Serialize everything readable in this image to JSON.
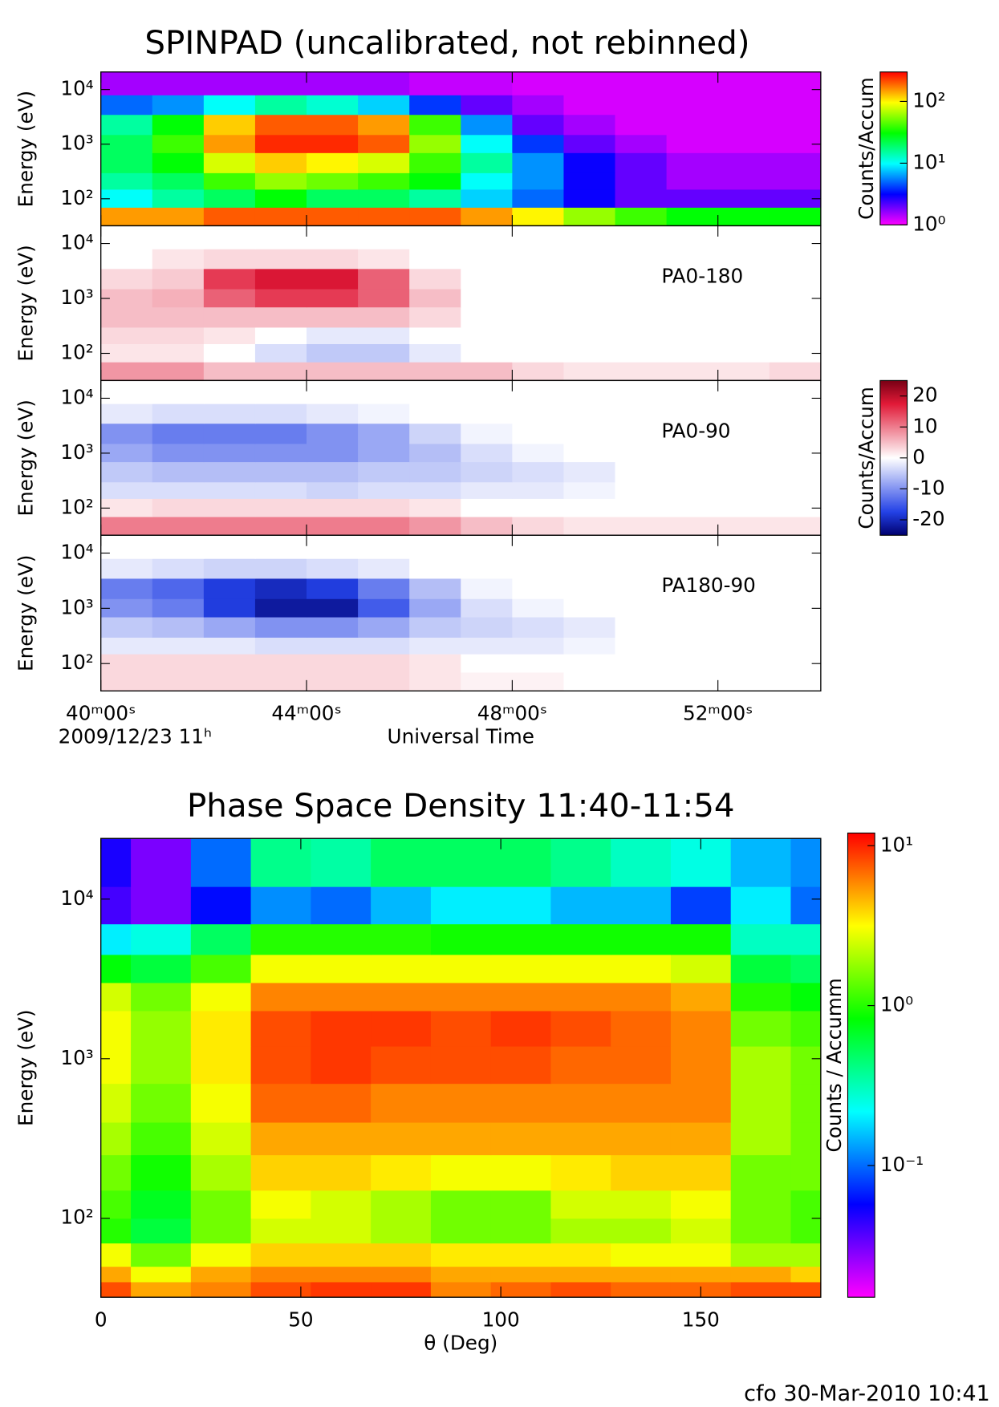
{
  "chart_data": [
    {
      "type": "heatmap",
      "title": "SPINPAD (uncalibrated, not rebinned)",
      "ylabel": "Energy (eV)",
      "log_y": true,
      "ylim": [
        32,
        21000
      ],
      "yticks": [
        {
          "value": 100,
          "label": "10²"
        },
        {
          "value": 1000,
          "label": "10³"
        },
        {
          "value": 10000,
          "label": "10⁴"
        }
      ],
      "xlim": [
        40,
        54
      ],
      "xticks": [
        40,
        44,
        48,
        52
      ],
      "xbins": [
        40,
        41,
        42,
        43,
        44,
        45,
        46,
        47,
        48,
        49,
        50,
        51,
        52,
        53,
        54
      ],
      "ybins": [
        32,
        70,
        150,
        300,
        700,
        1500,
        3500,
        8000,
        21000
      ],
      "values": [
        [
          150,
          150,
          200,
          200,
          200,
          200,
          200,
          150,
          100,
          60,
          40,
          30,
          30,
          30
        ],
        [
          10,
          15,
          20,
          30,
          20,
          20,
          15,
          8,
          5,
          3,
          2,
          2,
          2,
          2
        ],
        [
          15,
          20,
          40,
          60,
          50,
          40,
          30,
          10,
          6,
          3,
          2,
          1.5,
          1.5,
          1.5
        ],
        [
          20,
          30,
          80,
          120,
          100,
          80,
          40,
          15,
          6,
          3,
          2,
          1.5,
          1.5,
          1.5
        ],
        [
          20,
          40,
          150,
          250,
          250,
          200,
          60,
          10,
          4,
          2,
          1.5,
          1.2,
          1.2,
          1.2
        ],
        [
          15,
          30,
          120,
          200,
          200,
          150,
          40,
          6,
          2,
          1.5,
          1.2,
          1.2,
          1.2,
          1.2
        ],
        [
          5,
          6,
          10,
          15,
          12,
          8,
          4,
          2,
          1.5,
          1.2,
          1.2,
          1.2,
          1.2,
          1.2
        ],
        [
          1.5,
          1.5,
          1.5,
          1.5,
          1.5,
          1.5,
          1.3,
          1.3,
          1.2,
          1.2,
          1.2,
          1.2,
          1.2,
          1.2
        ]
      ],
      "colormap": "rainbow",
      "color_scale": "log",
      "clim": [
        1,
        300
      ],
      "colorbar": {
        "label": "Counts/Accum",
        "ticks": [
          {
            "value": 1,
            "label": "10⁰"
          },
          {
            "value": 10,
            "label": "10¹"
          },
          {
            "value": 100,
            "label": "10²"
          }
        ]
      }
    },
    {
      "type": "heatmap",
      "annotation": "PA0-180",
      "ylabel": "Energy (eV)",
      "log_y": true,
      "ylim": [
        32,
        21000
      ],
      "yticks": [
        {
          "value": 100,
          "label": "10²"
        },
        {
          "value": 1000,
          "label": "10³"
        },
        {
          "value": 10000,
          "label": "10⁴"
        }
      ],
      "xlim": [
        40,
        54
      ],
      "xticks": [
        40,
        44,
        48,
        52
      ],
      "xbins": [
        40,
        41,
        42,
        43,
        44,
        45,
        46,
        47,
        48,
        49,
        50,
        51,
        52,
        53,
        54
      ],
      "ybins": [
        32,
        70,
        150,
        300,
        700,
        1500,
        3500,
        8000,
        21000
      ],
      "values": [
        [
          8,
          8,
          5,
          5,
          5,
          5,
          5,
          5,
          3,
          2,
          2,
          2,
          2,
          3
        ],
        [
          2,
          2,
          0,
          -3,
          -5,
          -5,
          -2,
          0,
          0,
          0,
          0,
          0,
          0,
          0
        ],
        [
          3,
          3,
          2,
          0,
          -2,
          -2,
          0,
          0,
          0,
          0,
          0,
          0,
          0,
          0
        ],
        [
          5,
          5,
          5,
          5,
          5,
          5,
          3,
          0,
          0,
          0,
          0,
          0,
          0,
          0
        ],
        [
          5,
          6,
          12,
          15,
          15,
          12,
          5,
          0,
          0,
          0,
          0,
          0,
          0,
          0
        ],
        [
          3,
          4,
          15,
          18,
          18,
          12,
          3,
          0,
          0,
          0,
          0,
          0,
          0,
          0
        ],
        [
          0,
          2,
          3,
          3,
          3,
          2,
          0,
          0,
          0,
          0,
          0,
          0,
          0,
          0
        ],
        [
          0,
          0,
          0,
          0,
          0,
          0,
          0,
          0,
          0,
          0,
          0,
          0,
          0,
          0
        ]
      ],
      "colormap": "diverging",
      "color_scale": "linear",
      "clim": [
        -25,
        25
      ]
    },
    {
      "type": "heatmap",
      "annotation": "PA0-90",
      "ylabel": "Energy (eV)",
      "log_y": true,
      "ylim": [
        32,
        21000
      ],
      "yticks": [
        {
          "value": 100,
          "label": "10²"
        },
        {
          "value": 1000,
          "label": "10³"
        },
        {
          "value": 10000,
          "label": "10⁴"
        }
      ],
      "xlim": [
        40,
        54
      ],
      "xticks": [
        40,
        44,
        48,
        52
      ],
      "xbins": [
        40,
        41,
        42,
        43,
        44,
        45,
        46,
        47,
        48,
        49,
        50,
        51,
        52,
        53,
        54
      ],
      "ybins": [
        32,
        70,
        150,
        300,
        700,
        1500,
        3500,
        8000,
        21000
      ],
      "values": [
        [
          10,
          10,
          10,
          10,
          10,
          10,
          8,
          5,
          3,
          2,
          2,
          2,
          2,
          2
        ],
        [
          2,
          3,
          3,
          3,
          3,
          3,
          2,
          0,
          0,
          0,
          0,
          0,
          0,
          0
        ],
        [
          -3,
          -3,
          -3,
          -3,
          -4,
          -3,
          -3,
          -2,
          -2,
          -1,
          0,
          0,
          0,
          0
        ],
        [
          -5,
          -6,
          -6,
          -6,
          -6,
          -5,
          -5,
          -4,
          -3,
          -2,
          0,
          0,
          0,
          0
        ],
        [
          -8,
          -10,
          -10,
          -10,
          -10,
          -8,
          -6,
          -3,
          -1,
          0,
          0,
          0,
          0,
          0
        ],
        [
          -10,
          -12,
          -12,
          -12,
          -10,
          -8,
          -4,
          -1,
          0,
          0,
          0,
          0,
          0,
          0
        ],
        [
          -2,
          -3,
          -3,
          -3,
          -2,
          -1,
          0,
          0,
          0,
          0,
          0,
          0,
          0,
          0
        ],
        [
          0,
          0,
          0,
          0,
          0,
          0,
          0,
          0,
          0,
          0,
          0,
          0,
          0,
          0
        ]
      ],
      "colormap": "diverging",
      "color_scale": "linear",
      "clim": [
        -25,
        25
      ],
      "colorbar": {
        "label": "Counts/Accum",
        "ticks": [
          -20,
          -10,
          0,
          10,
          20
        ]
      }
    },
    {
      "type": "heatmap",
      "annotation": "PA180-90",
      "ylabel": "Energy (eV)",
      "log_y": true,
      "ylim": [
        32,
        21000
      ],
      "yticks": [
        {
          "value": 100,
          "label": "10²"
        },
        {
          "value": 1000,
          "label": "10³"
        },
        {
          "value": 10000,
          "label": "10⁴"
        }
      ],
      "xlim": [
        40,
        54
      ],
      "xticks": [
        {
          "value": 40,
          "label": "40ᵐ00ˢ"
        },
        {
          "value": 44,
          "label": "44ᵐ00ˢ"
        },
        {
          "value": 48,
          "label": "48ᵐ00ˢ"
        },
        {
          "value": 52,
          "label": "52ᵐ00ˢ"
        }
      ],
      "date_label": "2009/12/23 11ʰ",
      "xlabel": "Universal Time",
      "xbins": [
        40,
        41,
        42,
        43,
        44,
        45,
        46,
        47,
        48,
        49,
        50,
        51,
        52,
        53,
        54
      ],
      "ybins": [
        32,
        70,
        150,
        300,
        700,
        1500,
        3500,
        8000,
        21000
      ],
      "values": [
        [
          3,
          3,
          3,
          3,
          3,
          3,
          2,
          1,
          1,
          0,
          0,
          0,
          0,
          0
        ],
        [
          3,
          3,
          3,
          3,
          3,
          3,
          2,
          0,
          0,
          0,
          0,
          0,
          0,
          0
        ],
        [
          -2,
          -2,
          -2,
          -3,
          -3,
          -3,
          -2,
          -2,
          -2,
          -1,
          0,
          0,
          0,
          0
        ],
        [
          -5,
          -6,
          -8,
          -10,
          -10,
          -8,
          -5,
          -4,
          -3,
          -2,
          0,
          0,
          0,
          0
        ],
        [
          -10,
          -12,
          -18,
          -22,
          -22,
          -15,
          -8,
          -3,
          -1,
          0,
          0,
          0,
          0,
          0
        ],
        [
          -12,
          -14,
          -18,
          -20,
          -18,
          -12,
          -6,
          -1,
          0,
          0,
          0,
          0,
          0,
          0
        ],
        [
          -2,
          -3,
          -4,
          -4,
          -3,
          -2,
          0,
          0,
          0,
          0,
          0,
          0,
          0,
          0
        ],
        [
          0,
          0,
          0,
          0,
          0,
          0,
          0,
          0,
          0,
          0,
          0,
          0,
          0,
          0
        ]
      ],
      "colormap": "diverging",
      "color_scale": "linear",
      "clim": [
        -25,
        25
      ]
    },
    {
      "type": "heatmap",
      "title": "Phase Space Density 11:40-11:54",
      "ylabel": "Energy (eV)",
      "xlabel": "θ (Deg)",
      "log_y": true,
      "ylim": [
        32,
        24000
      ],
      "yticks": [
        {
          "value": 100,
          "label": "10²"
        },
        {
          "value": 1000,
          "label": "10³"
        },
        {
          "value": 10000,
          "label": "10⁴"
        }
      ],
      "xlim": [
        0,
        180
      ],
      "xticks": [
        0,
        50,
        100,
        150
      ],
      "xbins": [
        0,
        7.5,
        22.5,
        37.5,
        52.5,
        67.5,
        82.5,
        97.5,
        112.5,
        127.5,
        142.5,
        157.5,
        172.5,
        180
      ],
      "ybins": [
        32,
        40,
        50,
        70,
        100,
        150,
        250,
        400,
        700,
        1200,
        2000,
        3000,
        4500,
        7000,
        12000,
        24000
      ],
      "values": [
        [
          8,
          5,
          6,
          8,
          9,
          9,
          6,
          7,
          8,
          7,
          7,
          8,
          8
        ],
        [
          5,
          3,
          5,
          6,
          6,
          6,
          5,
          5,
          5,
          5,
          5,
          5,
          4
        ],
        [
          3,
          1.5,
          3,
          4,
          4,
          4,
          3.5,
          3.5,
          3.5,
          3,
          3,
          2,
          2
        ],
        [
          1,
          0.6,
          1.5,
          2.5,
          2.5,
          2,
          1.5,
          1.5,
          2,
          2,
          2.5,
          1.5,
          1.2
        ],
        [
          1.2,
          0.7,
          1.5,
          3,
          2.5,
          2,
          1.5,
          1.5,
          2.5,
          2.5,
          3,
          1.5,
          1.2
        ],
        [
          1.5,
          0.9,
          2,
          4,
          4,
          3.5,
          3,
          3,
          3.5,
          4,
          4,
          1.5,
          1.5
        ],
        [
          2,
          1.2,
          2.5,
          5,
          5,
          5,
          5,
          5,
          5,
          5,
          5,
          2,
          1.5
        ],
        [
          2.5,
          1.5,
          3,
          7,
          7,
          6,
          6,
          6,
          6,
          6,
          6,
          2,
          1.5
        ],
        [
          3,
          1.8,
          3.5,
          8,
          9,
          8,
          8,
          8,
          7,
          7,
          6,
          2,
          1.5
        ],
        [
          3,
          1.8,
          3.5,
          8,
          9,
          9,
          8,
          9,
          8,
          7,
          6,
          1.5,
          1.2
        ],
        [
          2.5,
          1.5,
          3,
          6,
          6,
          6,
          6,
          6,
          6,
          6,
          5,
          1,
          0.8
        ],
        [
          0.8,
          0.6,
          1.2,
          3,
          3,
          3,
          3,
          3,
          3,
          3,
          2.5,
          0.6,
          0.5
        ],
        [
          0.2,
          0.25,
          0.5,
          1,
          1,
          1,
          0.9,
          0.9,
          0.9,
          0.9,
          0.9,
          0.3,
          0.3
        ],
        [
          0.04,
          0.03,
          0.06,
          0.12,
          0.1,
          0.15,
          0.2,
          0.2,
          0.15,
          0.15,
          0.08,
          0.2,
          0.1
        ],
        [
          0.05,
          0.03,
          0.1,
          0.4,
          0.35,
          0.5,
          0.5,
          0.5,
          0.4,
          0.3,
          0.25,
          0.15,
          0.12
        ]
      ],
      "colormap": "rainbow",
      "color_scale": "log",
      "clim": [
        0.015,
        12
      ],
      "colorbar": {
        "label": "Counts / Accumm",
        "ticks": [
          {
            "value": 0.1,
            "label": "10⁻¹"
          },
          {
            "value": 1,
            "label": "10⁰"
          },
          {
            "value": 10,
            "label": "10¹"
          }
        ]
      }
    }
  ],
  "footer": "cfo 30-Mar-2010 10:41"
}
